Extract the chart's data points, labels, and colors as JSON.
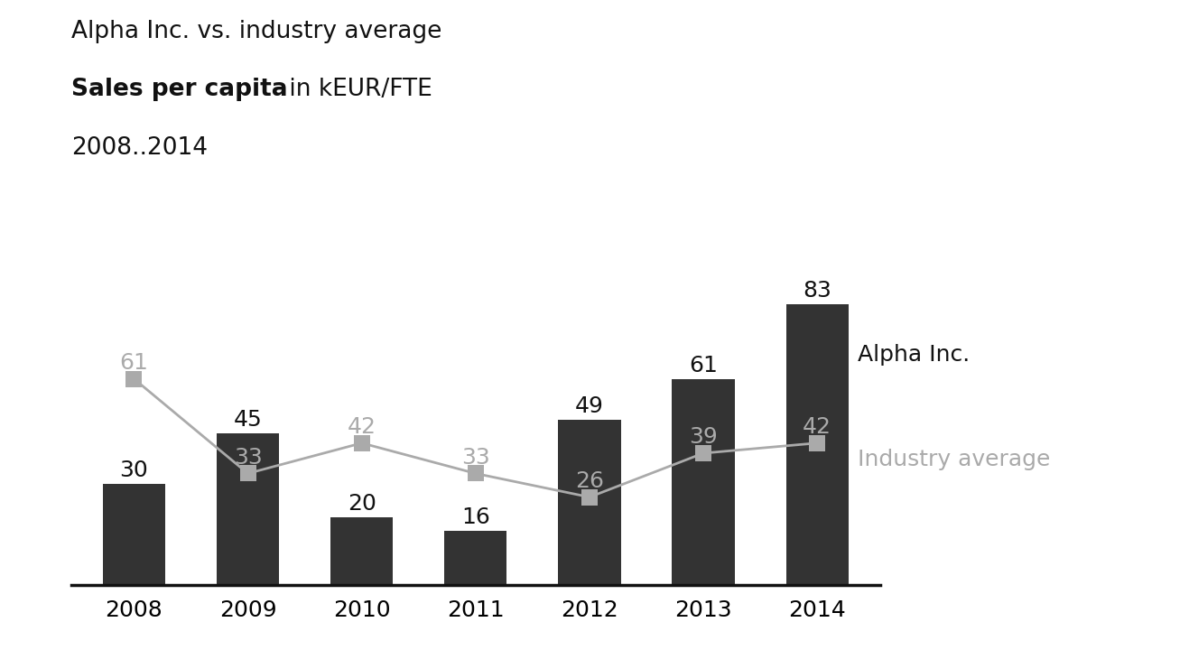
{
  "years": [
    2008,
    2009,
    2010,
    2011,
    2012,
    2013,
    2014
  ],
  "bar_values": [
    30,
    45,
    20,
    16,
    49,
    61,
    83
  ],
  "line_values": [
    61,
    33,
    42,
    33,
    26,
    39,
    42
  ],
  "bar_color": "#333333",
  "line_color": "#aaaaaa",
  "marker_color": "#aaaaaa",
  "bar_label_color": "#111111",
  "line_label_color": "#aaaaaa",
  "title_line1": "Alpha Inc. vs. industry average",
  "title_line2_bold": "Sales per capita",
  "title_line2_normal": " in kEUR/FTE",
  "title_line3": "2008..2014",
  "legend_alpha": "Alpha Inc.",
  "legend_industry": "Industry average",
  "background_color": "#ffffff",
  "title_fontsize": 19,
  "label_fontsize": 18,
  "tick_fontsize": 18,
  "legend_fontsize": 18,
  "ylim": [
    0,
    100
  ],
  "bar_width": 0.55
}
